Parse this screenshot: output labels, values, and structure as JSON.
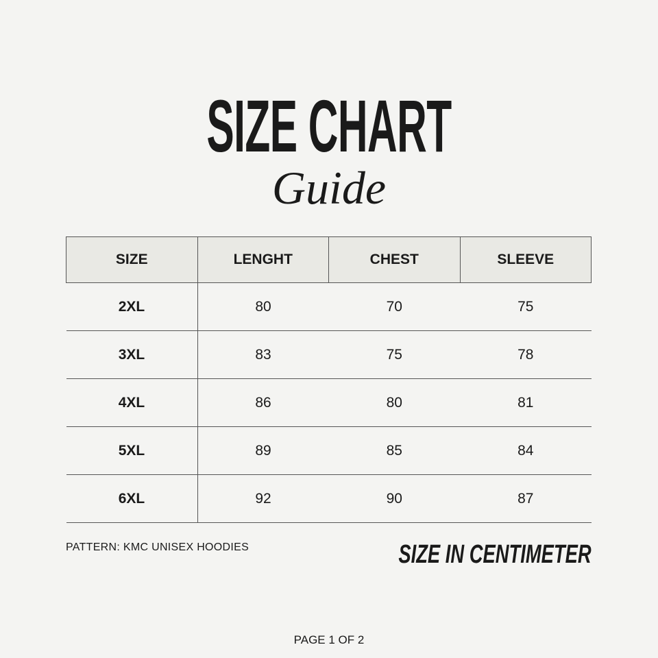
{
  "header": {
    "title": "SIZE CHART",
    "subtitle": "Guide"
  },
  "table": {
    "columns": [
      "SIZE",
      "LENGHT",
      "CHEST",
      "SLEEVE"
    ],
    "rows": [
      [
        "2XL",
        "80",
        "70",
        "75"
      ],
      [
        "3XL",
        "83",
        "75",
        "78"
      ],
      [
        "4XL",
        "86",
        "80",
        "81"
      ],
      [
        "5XL",
        "89",
        "85",
        "84"
      ],
      [
        "6XL",
        "92",
        "90",
        "87"
      ]
    ]
  },
  "footer": {
    "pattern": "PATTERN: KMC UNISEX HOODIES",
    "unit_note": "SIZE IN CENTIMETER",
    "page": "PAGE 1 OF 2"
  }
}
